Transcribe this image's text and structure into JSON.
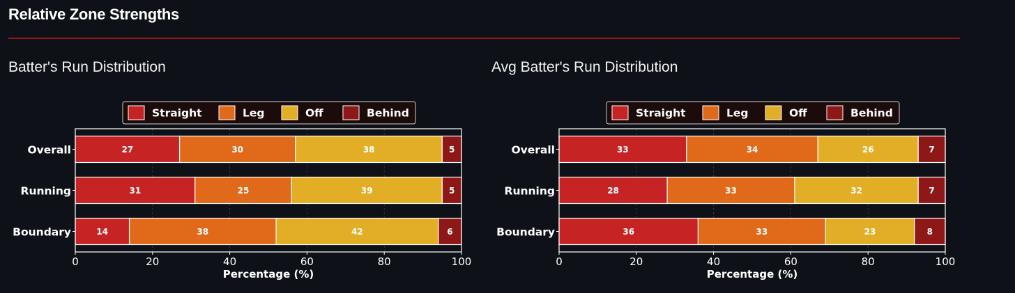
{
  "page": {
    "title": "Relative Zone Strengths",
    "accent_color": "#8a1c1c"
  },
  "chart_data": [
    {
      "type": "bar",
      "orientation": "horizontal",
      "stacked": true,
      "title": "Batter's Run Distribution",
      "categories": [
        "Overall",
        "Running",
        "Boundary"
      ],
      "series": [
        {
          "name": "Straight",
          "color": "#c62424",
          "values": [
            27,
            31,
            14
          ]
        },
        {
          "name": "Leg",
          "color": "#e06a1a",
          "values": [
            30,
            25,
            38
          ]
        },
        {
          "name": "Off",
          "color": "#e2ae26",
          "values": [
            38,
            39,
            42
          ]
        },
        {
          "name": "Behind",
          "color": "#8e1717",
          "values": [
            5,
            5,
            6
          ]
        }
      ],
      "xlabel": "Percentage (%)",
      "ylabel": "",
      "xlim": [
        0,
        100
      ],
      "xticks": [
        0,
        20,
        40,
        60,
        80,
        100
      ],
      "grid": true,
      "legend_position": "top-center"
    },
    {
      "type": "bar",
      "orientation": "horizontal",
      "stacked": true,
      "title": "Avg Batter's Run Distribution",
      "categories": [
        "Overall",
        "Running",
        "Boundary"
      ],
      "series": [
        {
          "name": "Straight",
          "color": "#c62424",
          "values": [
            33,
            28,
            36
          ]
        },
        {
          "name": "Leg",
          "color": "#e06a1a",
          "values": [
            34,
            33,
            33
          ]
        },
        {
          "name": "Off",
          "color": "#e2ae26",
          "values": [
            26,
            32,
            23
          ]
        },
        {
          "name": "Behind",
          "color": "#8e1717",
          "values": [
            7,
            7,
            8
          ]
        }
      ],
      "xlabel": "Percentage (%)",
      "ylabel": "",
      "xlim": [
        0,
        100
      ],
      "xticks": [
        0,
        20,
        40,
        60,
        80,
        100
      ],
      "grid": true,
      "legend_position": "top-center"
    }
  ]
}
